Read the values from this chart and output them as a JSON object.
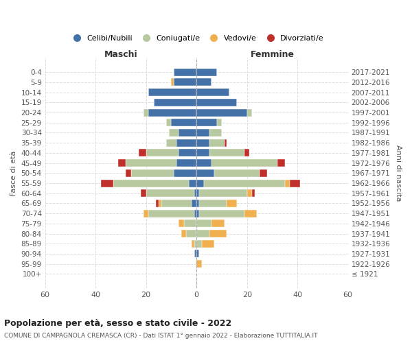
{
  "age_groups": [
    "100+",
    "95-99",
    "90-94",
    "85-89",
    "80-84",
    "75-79",
    "70-74",
    "65-69",
    "60-64",
    "55-59",
    "50-54",
    "45-49",
    "40-44",
    "35-39",
    "30-34",
    "25-29",
    "20-24",
    "15-19",
    "10-14",
    "5-9",
    "0-4"
  ],
  "birth_years": [
    "≤ 1921",
    "1922-1926",
    "1927-1931",
    "1932-1936",
    "1937-1941",
    "1942-1946",
    "1947-1951",
    "1952-1956",
    "1957-1961",
    "1962-1966",
    "1967-1971",
    "1972-1976",
    "1977-1981",
    "1982-1986",
    "1987-1991",
    "1992-1996",
    "1997-2001",
    "2002-2006",
    "2007-2011",
    "2012-2016",
    "2017-2021"
  ],
  "male": {
    "celibi": [
      0,
      0,
      1,
      0,
      0,
      0,
      1,
      2,
      1,
      3,
      9,
      8,
      7,
      8,
      7,
      10,
      19,
      17,
      19,
      9,
      9
    ],
    "coniugati": [
      0,
      0,
      0,
      1,
      4,
      5,
      18,
      12,
      19,
      30,
      17,
      20,
      13,
      4,
      4,
      2,
      2,
      0,
      0,
      0,
      0
    ],
    "vedovi": [
      0,
      0,
      0,
      1,
      2,
      2,
      2,
      1,
      0,
      0,
      0,
      0,
      0,
      0,
      0,
      0,
      0,
      0,
      0,
      1,
      0
    ],
    "divorziati": [
      0,
      0,
      0,
      0,
      0,
      0,
      0,
      1,
      2,
      5,
      2,
      3,
      3,
      0,
      0,
      0,
      0,
      0,
      0,
      0,
      0
    ]
  },
  "female": {
    "nubili": [
      0,
      0,
      1,
      0,
      0,
      0,
      1,
      1,
      1,
      3,
      7,
      6,
      5,
      5,
      5,
      8,
      20,
      16,
      13,
      6,
      8
    ],
    "coniugate": [
      0,
      0,
      0,
      2,
      5,
      6,
      18,
      11,
      19,
      32,
      18,
      26,
      14,
      6,
      5,
      2,
      2,
      0,
      0,
      0,
      0
    ],
    "vedove": [
      0,
      2,
      0,
      5,
      7,
      5,
      5,
      4,
      2,
      2,
      0,
      0,
      0,
      0,
      0,
      0,
      0,
      0,
      0,
      0,
      0
    ],
    "divorziate": [
      0,
      0,
      0,
      0,
      0,
      0,
      0,
      0,
      1,
      4,
      3,
      3,
      2,
      1,
      0,
      0,
      0,
      0,
      0,
      0,
      0
    ]
  },
  "colors": {
    "celibi": "#4472a8",
    "coniugati": "#b8c9a0",
    "vedovi": "#f0b050",
    "divorziati": "#c0302a"
  },
  "title": "Popolazione per età, sesso e stato civile - 2022",
  "subtitle": "COMUNE DI CAMPAGNOLA CREMASCA (CR) - Dati ISTAT 1° gennaio 2022 - Elaborazione TUTTITALIA.IT",
  "xlabel_left": "Maschi",
  "xlabel_right": "Femmine",
  "ylabel_left": "Fasce di età",
  "ylabel_right": "Anni di nascita",
  "xlim": 60,
  "legend_labels": [
    "Celibi/Nubili",
    "Coniugati/e",
    "Vedovi/e",
    "Divorziati/e"
  ],
  "background_color": "#ffffff"
}
